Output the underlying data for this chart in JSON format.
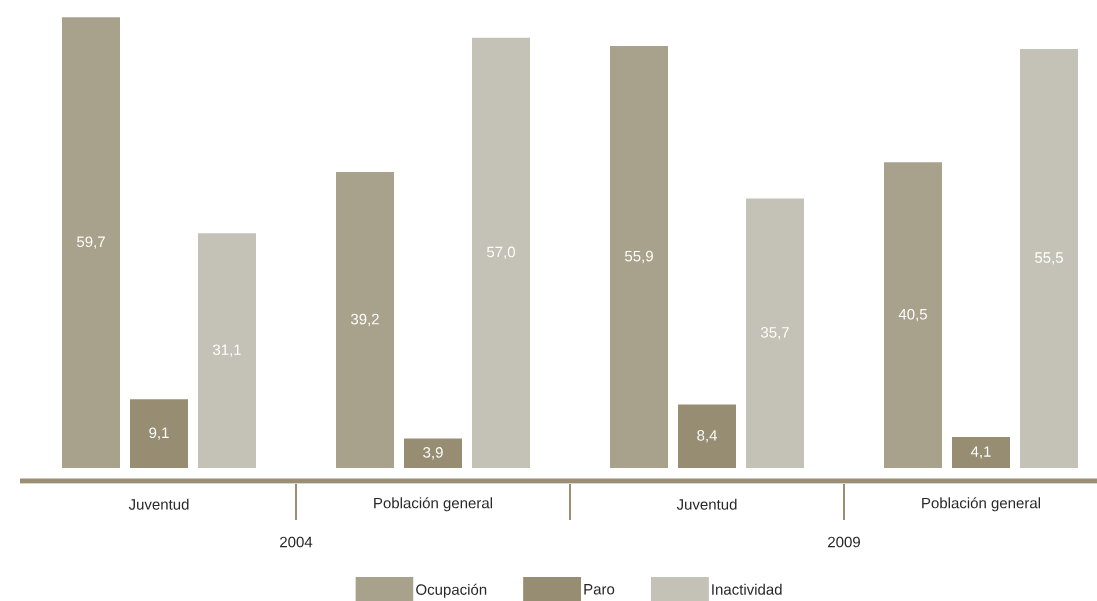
{
  "chart_data": {
    "type": "bar",
    "categories": [
      "Juventud",
      "Población general",
      "Juventud",
      "Población general"
    ],
    "series": [
      {
        "name": "Ocupación",
        "color": "#a8a18c",
        "values": [
          59.7,
          39.2,
          55.9,
          40.5
        ],
        "value_labels": [
          "59,7",
          "39,2",
          "55,9",
          "40,5"
        ]
      },
      {
        "name": "Paro",
        "color": "#968d72",
        "values": [
          9.1,
          3.9,
          8.4,
          4.1
        ],
        "value_labels": [
          "9,1",
          "3,9",
          "8,4",
          "4,1"
        ]
      },
      {
        "name": "Inactividad",
        "color": "#c4c2b6",
        "values": [
          31.1,
          57.0,
          35.7,
          55.5
        ],
        "value_labels": [
          "31,1",
          "57,0",
          "35,7",
          "55,5"
        ]
      }
    ],
    "annotations": [
      "2004",
      "2009"
    ],
    "ylim": [
      0,
      60
    ],
    "tick_labels": "x",
    "legend": "bottom"
  }
}
